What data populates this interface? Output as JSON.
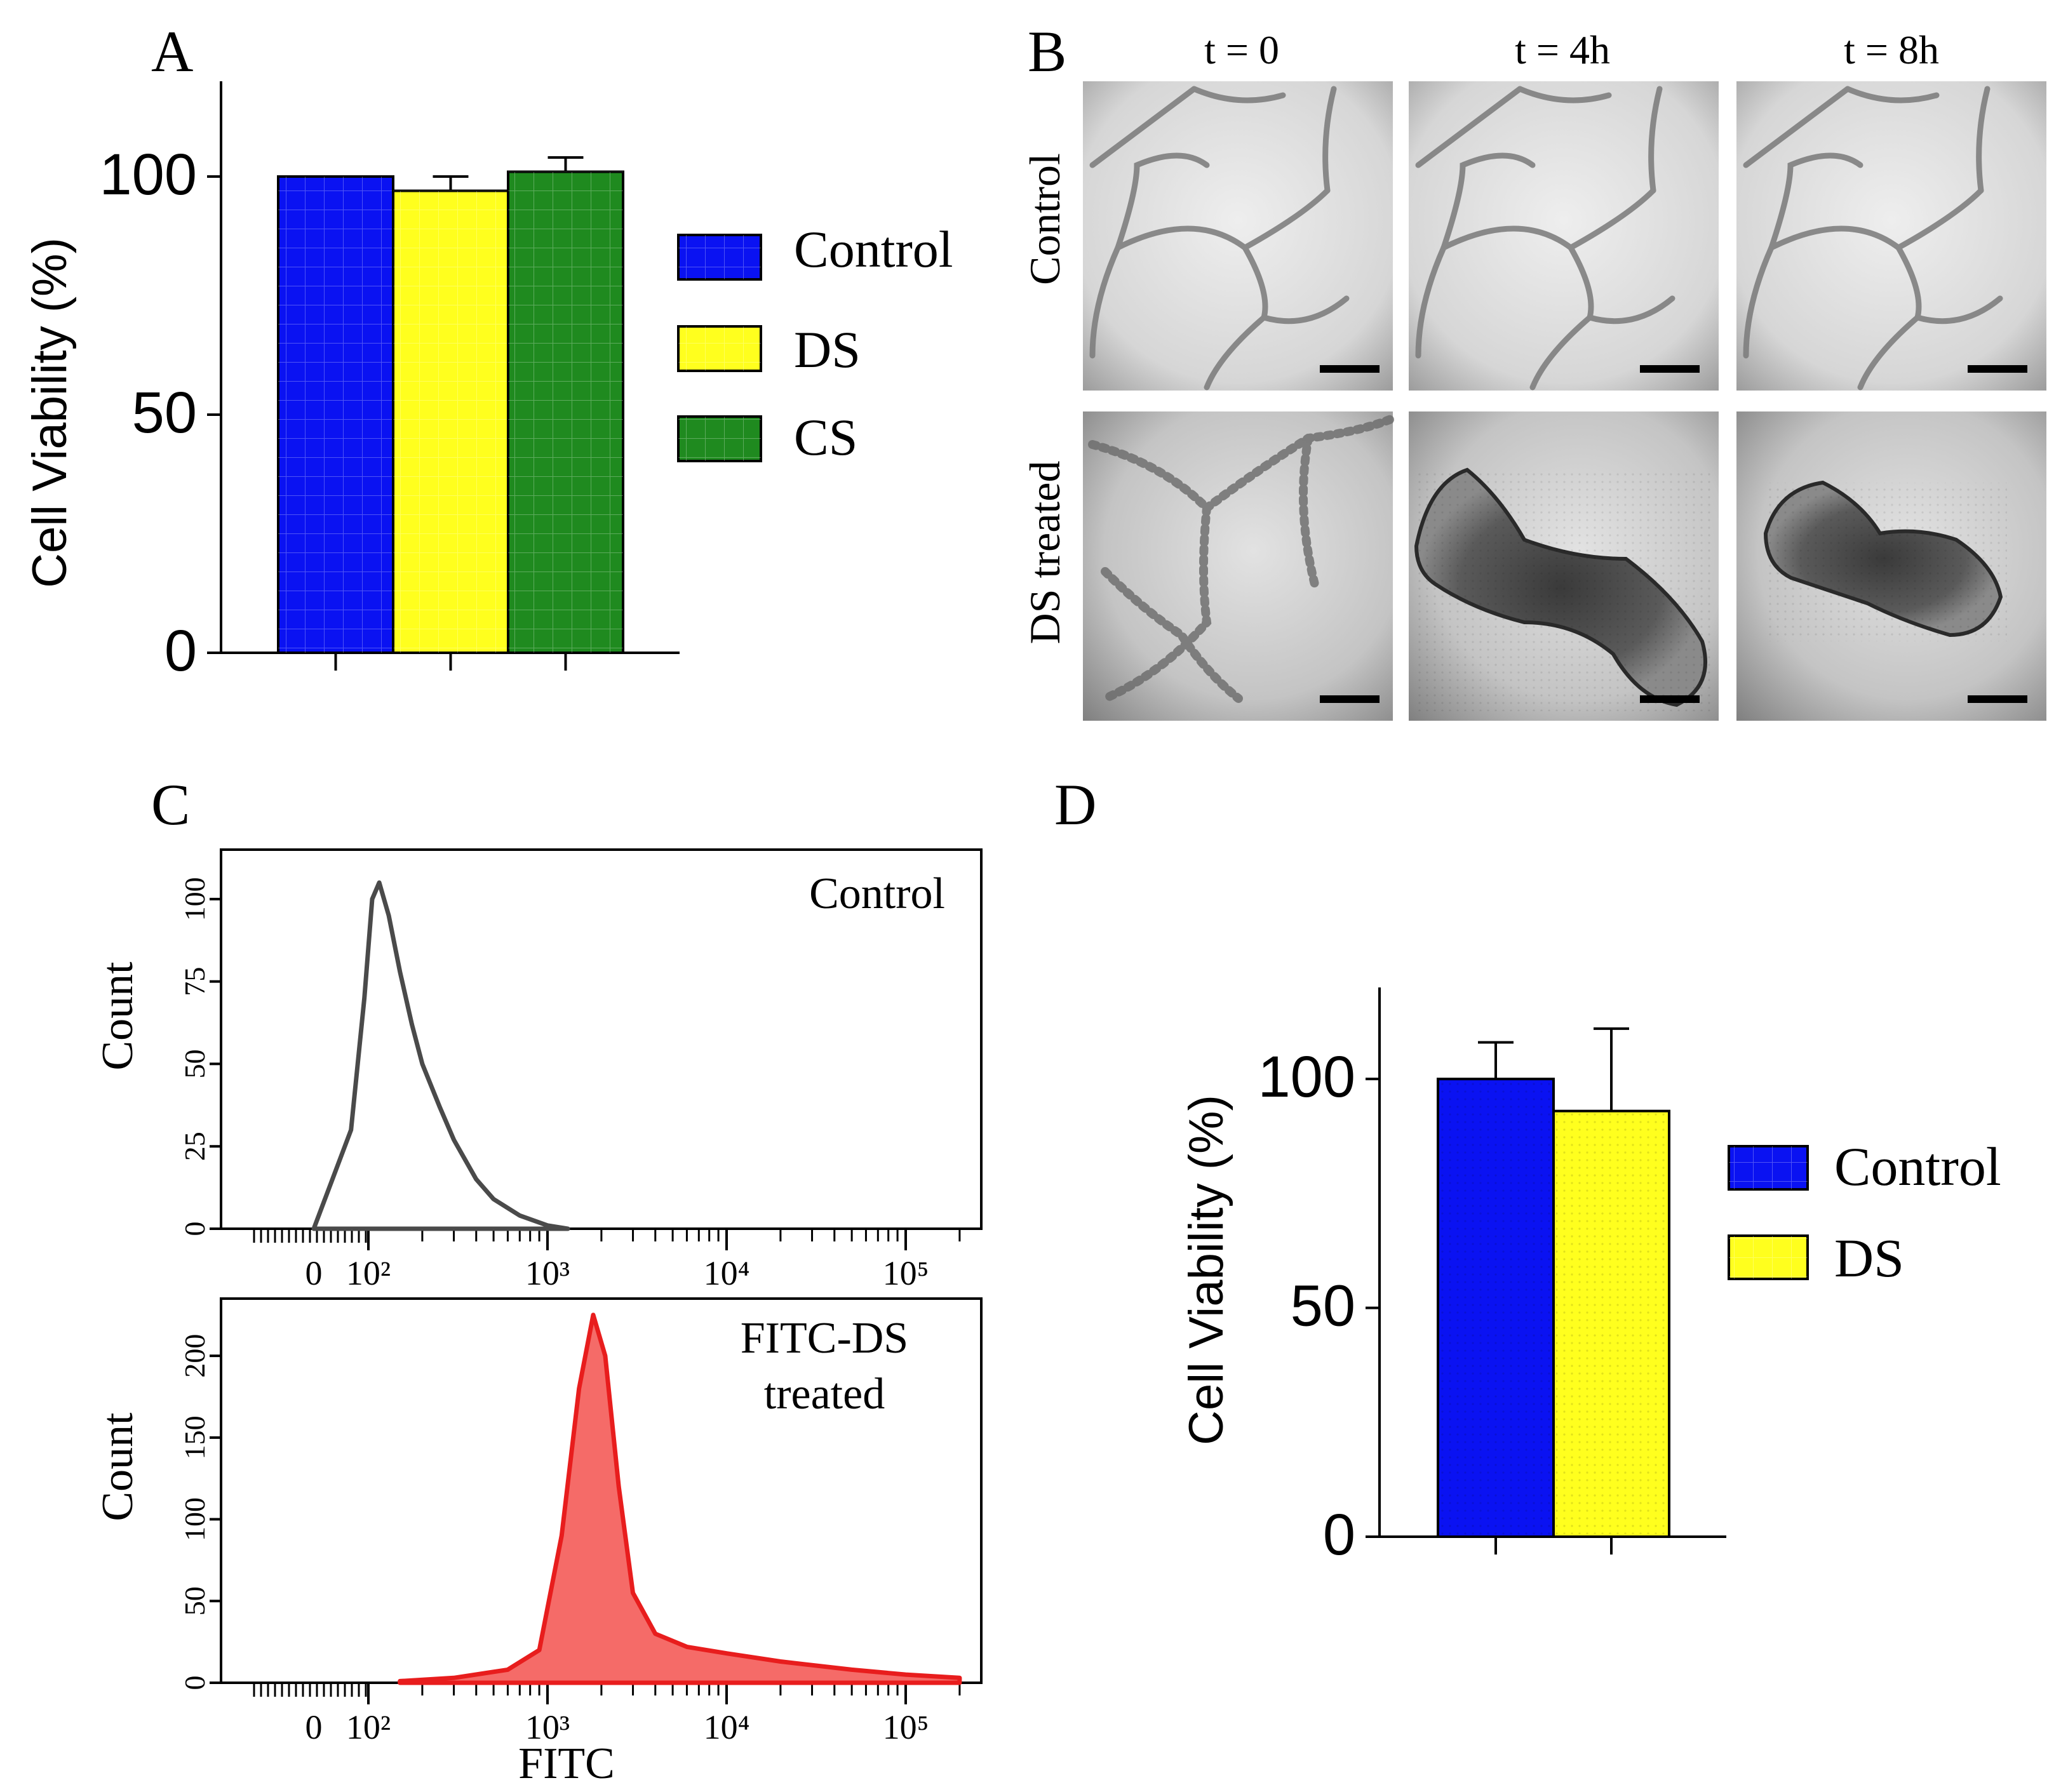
{
  "colors": {
    "control": "#0a12f2",
    "ds": "#ffff1e",
    "cs": "#1f8a1f",
    "histogram_control": "#4a4a4a",
    "histogram_treated": "#f56b68",
    "histogram_treated_line": "#e81d1d"
  },
  "panels": {
    "a": {
      "label": "A",
      "ylabel": "Cell Viability (%)",
      "legend": [
        "Control",
        "DS",
        "CS"
      ]
    },
    "b": {
      "label": "B",
      "columns": [
        "t = 0",
        "t = 4h",
        "t = 8h"
      ],
      "rows": [
        "Control",
        "DS treated"
      ]
    },
    "c": {
      "label": "C",
      "top_title": "Control",
      "bottom_title_line1": "FITC-DS",
      "bottom_title_line2": "treated",
      "ylabel": "Count",
      "xlabel": "FITC"
    },
    "d": {
      "label": "D",
      "ylabel": "Cell Viability (%)",
      "legend": [
        "Control",
        "DS"
      ]
    }
  },
  "chart_data": [
    {
      "id": "A",
      "type": "bar",
      "title": "",
      "xlabel": "",
      "ylabel": "Cell Viability (%)",
      "ylim": [
        0,
        120
      ],
      "yticks": [
        0,
        50,
        100
      ],
      "categories": [
        "Control",
        "DS",
        "CS"
      ],
      "values": [
        100,
        97,
        101
      ],
      "errors": [
        0,
        3,
        3
      ],
      "legend": "right"
    },
    {
      "id": "C-top",
      "type": "area",
      "title": "Control",
      "xlabel": "",
      "ylabel": "Count",
      "xscale": "log",
      "xtick_labels": [
        "0",
        "10²",
        "10³",
        "10⁴",
        "10⁵"
      ],
      "ylim": [
        0,
        115
      ],
      "yticks": [
        0,
        25,
        50,
        75,
        100
      ],
      "x": [
        60,
        80,
        95,
        105,
        115,
        130,
        150,
        175,
        200,
        250,
        300,
        400,
        500,
        700,
        1000,
        1300
      ],
      "values": [
        0,
        30,
        70,
        100,
        105,
        95,
        78,
        62,
        50,
        37,
        27,
        15,
        9,
        4,
        1,
        0
      ]
    },
    {
      "id": "C-bottom",
      "type": "area",
      "title": "FITC-DS treated",
      "xlabel": "FITC",
      "ylabel": "Count",
      "xscale": "log",
      "xtick_labels": [
        "0",
        "10²",
        "10³",
        "10⁴",
        "10⁵"
      ],
      "ylim": [
        0,
        235
      ],
      "yticks": [
        0,
        50,
        100,
        150,
        200
      ],
      "x": [
        150,
        300,
        600,
        900,
        1200,
        1500,
        1800,
        2100,
        2500,
        3000,
        4000,
        6000,
        10000,
        20000,
        50000,
        100000,
        200000
      ],
      "values": [
        1,
        3,
        8,
        20,
        90,
        180,
        225,
        200,
        120,
        55,
        30,
        22,
        18,
        13,
        8,
        5,
        3
      ]
    },
    {
      "id": "D",
      "type": "bar",
      "title": "",
      "xlabel": "",
      "ylabel": "Cell Viability (%)",
      "ylim": [
        0,
        120
      ],
      "yticks": [
        0,
        50,
        100
      ],
      "categories": [
        "Control",
        "DS"
      ],
      "values": [
        100,
        93
      ],
      "errors": [
        8,
        18
      ],
      "legend": "right"
    }
  ]
}
